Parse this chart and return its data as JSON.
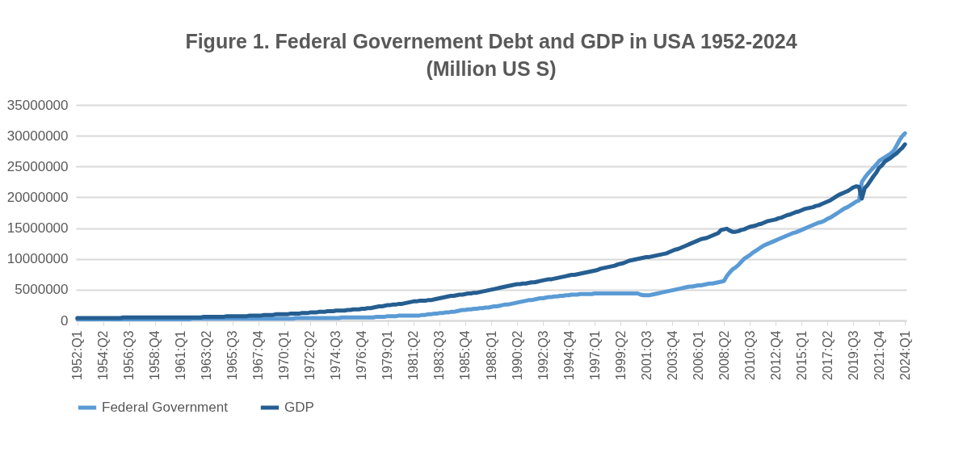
{
  "chart_data": {
    "type": "line",
    "title": [
      "Figure 1. Federal Governement Debt and GDP in USA 1952-2024",
      "(Million US S)"
    ],
    "categories": [
      "1952:Q1",
      null,
      null,
      null,
      null,
      null,
      null,
      null,
      null,
      "1954:Q2",
      null,
      null,
      null,
      null,
      null,
      null,
      null,
      null,
      "1956:Q3",
      null,
      null,
      null,
      null,
      null,
      null,
      null,
      null,
      "1958:Q4",
      null,
      null,
      null,
      null,
      null,
      null,
      null,
      null,
      "1961:Q1",
      null,
      null,
      null,
      null,
      null,
      null,
      null,
      null,
      "1963:Q2",
      null,
      null,
      null,
      null,
      null,
      null,
      null,
      null,
      "1965:Q3",
      null,
      null,
      null,
      null,
      null,
      null,
      null,
      null,
      "1967:Q4",
      null,
      null,
      null,
      null,
      null,
      null,
      null,
      null,
      "1970:Q1",
      null,
      null,
      null,
      null,
      null,
      null,
      null,
      null,
      "1972:Q2",
      null,
      null,
      null,
      null,
      null,
      null,
      null,
      null,
      "1974:Q3",
      null,
      null,
      null,
      null,
      null,
      null,
      null,
      null,
      "1976:Q4",
      null,
      null,
      null,
      null,
      null,
      null,
      null,
      null,
      "1979:Q1",
      null,
      null,
      null,
      null,
      null,
      null,
      null,
      null,
      "1981:Q2",
      null,
      null,
      null,
      null,
      null,
      null,
      null,
      null,
      "1983:Q3",
      null,
      null,
      null,
      null,
      null,
      null,
      null,
      null,
      "1985:Q4",
      null,
      null,
      null,
      null,
      null,
      null,
      null,
      null,
      "1988:Q1",
      null,
      null,
      null,
      null,
      null,
      null,
      null,
      null,
      "1990:Q2",
      null,
      null,
      null,
      null,
      null,
      null,
      null,
      null,
      "1992:Q3",
      null,
      null,
      null,
      null,
      null,
      null,
      null,
      null,
      "1994:Q4",
      null,
      null,
      null,
      null,
      null,
      null,
      null,
      null,
      "1997:Q1",
      null,
      null,
      null,
      null,
      null,
      null,
      null,
      null,
      "1999:Q2",
      null,
      null,
      null,
      null,
      null,
      null,
      null,
      null,
      "2001:Q3",
      null,
      null,
      null,
      null,
      null,
      null,
      null,
      null,
      "2003:Q4",
      null,
      null,
      null,
      null,
      null,
      null,
      null,
      null,
      "2006:Q1",
      null,
      null,
      null,
      null,
      null,
      null,
      null,
      null,
      "2008:Q2",
      null,
      null,
      null,
      null,
      null,
      null,
      null,
      null,
      "2010:Q3",
      null,
      null,
      null,
      null,
      null,
      null,
      null,
      null,
      "2012:Q4",
      null,
      null,
      null,
      null,
      null,
      null,
      null,
      null,
      "2015:Q1",
      null,
      null,
      null,
      null,
      null,
      null,
      null,
      null,
      "2017:Q2",
      null,
      null,
      null,
      null,
      null,
      null,
      null,
      null,
      "2019:Q3",
      null,
      null,
      null,
      null,
      null,
      null,
      null,
      null,
      "2021:Q4",
      null,
      null,
      null,
      null,
      null,
      null,
      null,
      null,
      "2024:Q1"
    ],
    "ylim": [
      0,
      35000000
    ],
    "yticks": [
      0,
      5000000,
      10000000,
      15000000,
      20000000,
      25000000,
      30000000,
      35000000
    ],
    "grid": "y",
    "legend": "bottom",
    "series": [
      {
        "name": "Federal Government",
        "color": "#5b9bd5",
        "values": [
          200000,
          200000,
          200000,
          200000,
          200000,
          200000,
          200000,
          200000,
          200000,
          200000,
          200000,
          200000,
          200000,
          200000,
          200000,
          200000,
          200000,
          200000,
          200000,
          200000,
          200000,
          200000,
          200000,
          200000,
          200000,
          200000,
          200000,
          200000,
          200000,
          200000,
          200000,
          200000,
          200000,
          200000,
          200000,
          200000,
          200000,
          200000,
          200000,
          200000,
          300000,
          300000,
          300000,
          300000,
          300000,
          300000,
          300000,
          300000,
          300000,
          300000,
          300000,
          300000,
          300000,
          300000,
          300000,
          300000,
          300000,
          300000,
          300000,
          300000,
          300000,
          300000,
          300000,
          300000,
          300000,
          300000,
          300000,
          300000,
          300000,
          300000,
          300000,
          300000,
          300000,
          300000,
          300000,
          300000,
          400000,
          400000,
          400000,
          400000,
          400000,
          400000,
          400000,
          400000,
          400000,
          400000,
          400000,
          400000,
          400000,
          400000,
          400000,
          400000,
          500000,
          500000,
          500000,
          500000,
          500000,
          500000,
          500000,
          500000,
          500000,
          500000,
          500000,
          500000,
          600000,
          600000,
          600000,
          600000,
          700000,
          700000,
          700000,
          700000,
          800000,
          800000,
          800000,
          800000,
          800000,
          800000,
          800000,
          800000,
          900000,
          900000,
          1000000,
          1000000,
          1100000,
          1100000,
          1200000,
          1200000,
          1300000,
          1300000,
          1400000,
          1400000,
          1500000,
          1600000,
          1700000,
          1700000,
          1800000,
          1800000,
          1900000,
          1900000,
          2000000,
          2000000,
          2100000,
          2100000,
          2200000,
          2300000,
          2300000,
          2400000,
          2500000,
          2600000,
          2600000,
          2700000,
          2800000,
          2900000,
          3000000,
          3100000,
          3200000,
          3300000,
          3300000,
          3400000,
          3500000,
          3600000,
          3600000,
          3700000,
          3800000,
          3800000,
          3900000,
          3900000,
          4000000,
          4000000,
          4100000,
          4100000,
          4200000,
          4200000,
          4200000,
          4300000,
          4300000,
          4300000,
          4300000,
          4300000,
          4400000,
          4400000,
          4400000,
          4400000,
          4400000,
          4400000,
          4400000,
          4400000,
          4400000,
          4400000,
          4400000,
          4400000,
          4400000,
          4400000,
          4400000,
          4400000,
          4200000,
          4100000,
          4100000,
          4100000,
          4200000,
          4300000,
          4400000,
          4500000,
          4600000,
          4700000,
          4800000,
          4900000,
          5000000,
          5100000,
          5200000,
          5300000,
          5400000,
          5500000,
          5500000,
          5600000,
          5700000,
          5700000,
          5800000,
          5900000,
          6000000,
          6000000,
          6100000,
          6200000,
          6300000,
          6400000,
          7200000,
          7800000,
          8300000,
          8600000,
          9000000,
          9500000,
          10000000,
          10300000,
          10600000,
          11000000,
          11300000,
          11600000,
          11900000,
          12200000,
          12400000,
          12600000,
          12800000,
          13000000,
          13200000,
          13400000,
          13600000,
          13800000,
          14000000,
          14200000,
          14300000,
          14500000,
          14700000,
          14900000,
          15100000,
          15300000,
          15500000,
          15700000,
          15900000,
          16000000,
          16200000,
          16500000,
          16700000,
          17000000,
          17300000,
          17600000,
          17900000,
          18200000,
          18400000,
          18700000,
          19000000,
          19300000,
          19500000,
          22500000,
          23200000,
          23800000,
          24300000,
          24800000,
          25300000,
          25900000,
          26200000,
          26500000,
          26800000,
          27100000,
          27500000,
          28300000,
          29200000,
          29900000,
          30400000
        ]
      },
      {
        "name": "GDP",
        "color": "#255e91",
        "values": [
          400000,
          400000,
          400000,
          400000,
          400000,
          400000,
          400000,
          400000,
          400000,
          400000,
          400000,
          400000,
          400000,
          400000,
          400000,
          400000,
          500000,
          500000,
          500000,
          500000,
          500000,
          500000,
          500000,
          500000,
          500000,
          500000,
          500000,
          500000,
          500000,
          500000,
          500000,
          500000,
          500000,
          500000,
          500000,
          500000,
          500000,
          500000,
          500000,
          500000,
          500000,
          500000,
          500000,
          500000,
          600000,
          600000,
          600000,
          600000,
          600000,
          600000,
          600000,
          600000,
          700000,
          700000,
          700000,
          700000,
          700000,
          700000,
          700000,
          700000,
          800000,
          800000,
          800000,
          800000,
          800000,
          900000,
          900000,
          900000,
          900000,
          1000000,
          1000000,
          1000000,
          1000000,
          1000000,
          1100000,
          1100000,
          1100000,
          1100000,
          1200000,
          1200000,
          1200000,
          1300000,
          1300000,
          1300000,
          1400000,
          1400000,
          1400000,
          1500000,
          1500000,
          1500000,
          1600000,
          1600000,
          1600000,
          1600000,
          1700000,
          1700000,
          1800000,
          1800000,
          1800000,
          1900000,
          1900000,
          2000000,
          2000000,
          2100000,
          2200000,
          2300000,
          2300000,
          2400000,
          2500000,
          2500000,
          2600000,
          2600000,
          2700000,
          2700000,
          2800000,
          2900000,
          3000000,
          3100000,
          3100000,
          3200000,
          3200000,
          3200000,
          3300000,
          3300000,
          3400000,
          3500000,
          3600000,
          3700000,
          3800000,
          3900000,
          4000000,
          4000000,
          4100000,
          4200000,
          4200000,
          4300000,
          4400000,
          4400000,
          4500000,
          4500000,
          4600000,
          4700000,
          4800000,
          4900000,
          5000000,
          5100000,
          5200000,
          5300000,
          5400000,
          5500000,
          5600000,
          5700000,
          5800000,
          5900000,
          5900000,
          6000000,
          6000000,
          6100000,
          6200000,
          6200000,
          6300000,
          6400000,
          6500000,
          6600000,
          6700000,
          6700000,
          6800000,
          6900000,
          7000000,
          7100000,
          7200000,
          7300000,
          7400000,
          7400000,
          7500000,
          7600000,
          7700000,
          7800000,
          7900000,
          8000000,
          8100000,
          8200000,
          8400000,
          8500000,
          8600000,
          8700000,
          8800000,
          8900000,
          9100000,
          9200000,
          9300000,
          9500000,
          9700000,
          9800000,
          9900000,
          10000000,
          10100000,
          10200000,
          10300000,
          10300000,
          10400000,
          10500000,
          10600000,
          10700000,
          10800000,
          10900000,
          11100000,
          11300000,
          11500000,
          11600000,
          11800000,
          12000000,
          12200000,
          12400000,
          12600000,
          12800000,
          13000000,
          13200000,
          13300000,
          13400000,
          13600000,
          13800000,
          14000000,
          14200000,
          14700000,
          14800000,
          14900000,
          14600000,
          14400000,
          14400000,
          14500000,
          14700000,
          14800000,
          15000000,
          15200000,
          15300000,
          15400000,
          15600000,
          15700000,
          15900000,
          16100000,
          16200000,
          16300000,
          16400000,
          16600000,
          16700000,
          16900000,
          17100000,
          17200000,
          17400000,
          17600000,
          17700000,
          17900000,
          18100000,
          18200000,
          18300000,
          18400000,
          18600000,
          18700000,
          18900000,
          19100000,
          19300000,
          19500000,
          19800000,
          20100000,
          20400000,
          20600000,
          20800000,
          21000000,
          21300000,
          21600000,
          21800000,
          21700000,
          19800000,
          21500000,
          22000000,
          22700000,
          23400000,
          24000000,
          24800000,
          25200000,
          25800000,
          26100000,
          26400000,
          26800000,
          27100000,
          27600000,
          28000000,
          28600000
        ]
      }
    ]
  }
}
